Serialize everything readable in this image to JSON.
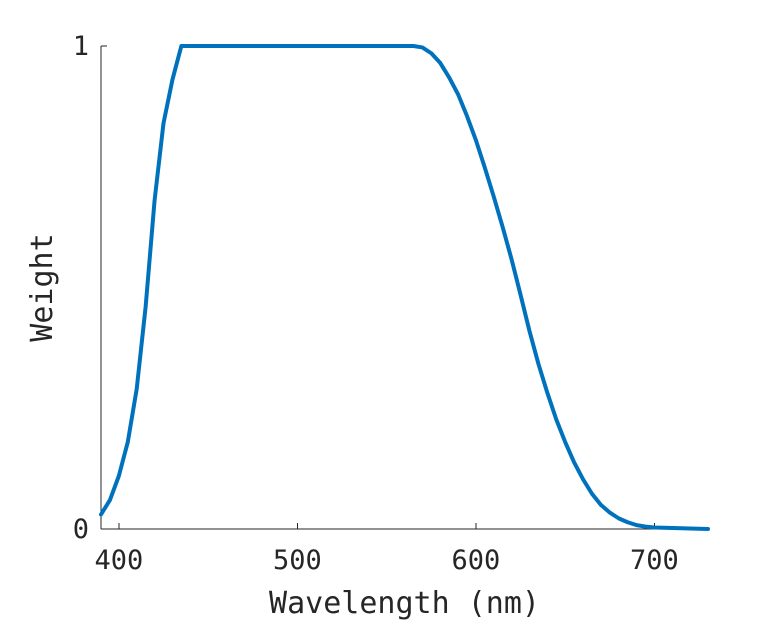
{
  "chart_data": {
    "type": "line",
    "xlabel": "Wavelength (nm)",
    "ylabel": "Weight",
    "xlim": [
      390,
      730
    ],
    "ylim": [
      0,
      1
    ],
    "xticks": [
      400,
      500,
      600,
      700
    ],
    "yticks": [
      0,
      1
    ],
    "xtick_labels": [
      "400",
      "500",
      "600",
      "700"
    ],
    "ytick_labels": [
      "0",
      "1"
    ],
    "grid": false,
    "colors": {
      "series": "#0072BD",
      "axis": "#262626"
    },
    "series": [
      {
        "x": [
          390,
          395,
          400,
          405,
          410,
          415,
          420,
          425,
          430,
          435,
          440,
          450,
          460,
          470,
          480,
          490,
          500,
          510,
          520,
          530,
          540,
          550,
          560,
          565,
          570,
          575,
          580,
          585,
          590,
          595,
          600,
          605,
          610,
          615,
          620,
          625,
          630,
          635,
          640,
          645,
          650,
          655,
          660,
          665,
          670,
          675,
          680,
          685,
          690,
          695,
          700,
          710,
          720,
          730
        ],
        "y": [
          0.03,
          0.06,
          0.11,
          0.18,
          0.29,
          0.46,
          0.68,
          0.84,
          0.93,
          1.0,
          1.0,
          1.0,
          1.0,
          1.0,
          1.0,
          1.0,
          1.0,
          1.0,
          1.0,
          1.0,
          1.0,
          1.0,
          1.0,
          1.0,
          0.997,
          0.985,
          0.965,
          0.935,
          0.9,
          0.855,
          0.805,
          0.748,
          0.688,
          0.625,
          0.558,
          0.485,
          0.41,
          0.342,
          0.282,
          0.227,
          0.18,
          0.138,
          0.103,
          0.073,
          0.05,
          0.034,
          0.022,
          0.014,
          0.008,
          0.005,
          0.003,
          0.002,
          0.001,
          0.0
        ]
      }
    ]
  }
}
